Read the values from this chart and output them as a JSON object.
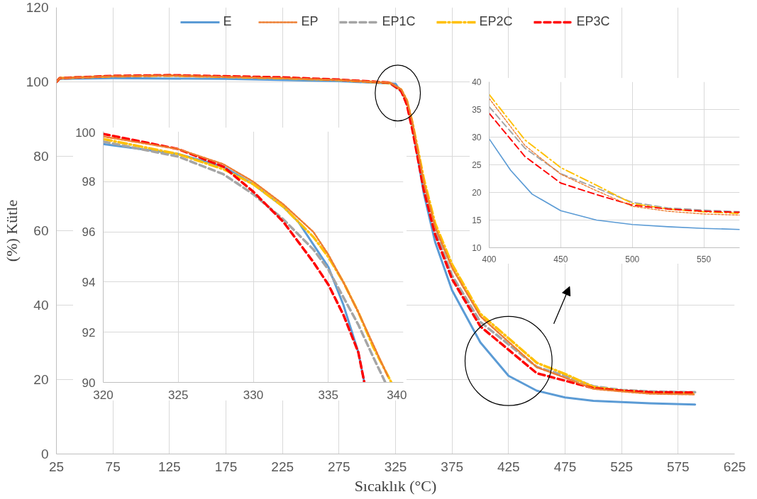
{
  "chart_data": [
    {
      "type": "line",
      "xlabel": "Sıcaklık (°C)",
      "ylabel": "(%) Kütle",
      "xlim": [
        25,
        625
      ],
      "ylim": [
        0,
        120
      ],
      "xticks": [
        25,
        75,
        125,
        175,
        225,
        275,
        325,
        375,
        425,
        475,
        525,
        575,
        625
      ],
      "yticks": [
        0,
        20,
        40,
        60,
        80,
        100,
        120
      ],
      "grid": true,
      "legend": "top",
      "series": [
        {
          "name": "E",
          "color": "#5b9bd5",
          "line_style": "solid",
          "x": [
            25,
            28,
            75,
            175,
            275,
            325,
            335,
            340,
            350,
            360,
            375,
            400,
            425,
            450,
            475,
            500,
            550,
            590
          ],
          "values": [
            100,
            100.8,
            101,
            100.8,
            100.2,
            99.5,
            95,
            88,
            70,
            57,
            44,
            30,
            21,
            17,
            15.2,
            14.3,
            13.6,
            13.3
          ]
        },
        {
          "name": "EP",
          "color": "#ed7d31",
          "line_style": "dotted",
          "x": [
            25,
            28,
            75,
            125,
            225,
            275,
            320,
            330,
            335,
            340,
            350,
            360,
            375,
            400,
            450,
            475,
            500,
            525,
            550,
            590
          ],
          "values": [
            100,
            101,
            101.5,
            101.7,
            101,
            100.5,
            99.8,
            98,
            95.1,
            89,
            73,
            61,
            50,
            37,
            23.3,
            20.5,
            17.5,
            16.8,
            16.2,
            16
          ]
        },
        {
          "name": "EP1C",
          "color": "#a5a5a5",
          "line_style": "dashed",
          "x": [
            25,
            28,
            75,
            125,
            225,
            275,
            320,
            330,
            335,
            340,
            350,
            360,
            375,
            400,
            450,
            475,
            500,
            525,
            550,
            590
          ],
          "values": [
            100,
            101,
            101.5,
            101.7,
            101,
            100.5,
            99.6,
            97.5,
            94.5,
            88,
            72,
            60,
            48,
            35.5,
            23.4,
            21,
            18.2,
            17.2,
            16.8,
            16.6
          ]
        },
        {
          "name": "EP2C",
          "color": "#ffc000",
          "line_style": "dashdot",
          "x": [
            25,
            28,
            75,
            125,
            225,
            275,
            320,
            330,
            335,
            340,
            350,
            360,
            375,
            400,
            450,
            475,
            500,
            525,
            550,
            590
          ],
          "values": [
            100,
            101,
            101.5,
            101.7,
            101,
            100.5,
            99.7,
            97.9,
            95,
            89,
            74,
            62,
            51,
            37.7,
            24.5,
            21.5,
            18,
            17,
            16.5,
            16.2
          ]
        },
        {
          "name": "EP3C",
          "color": "#ff0000",
          "line_style": "dashed",
          "x": [
            25,
            28,
            75,
            125,
            225,
            275,
            320,
            330,
            335,
            340,
            350,
            360,
            375,
            400,
            450,
            475,
            500,
            525,
            550,
            590
          ],
          "values": [
            100,
            101,
            101.6,
            101.8,
            101.2,
            100.6,
            99.8,
            97.6,
            93.9,
            87,
            71,
            59,
            47,
            34.3,
            21.7,
            19.7,
            17.7,
            17,
            16.6,
            16.5
          ]
        }
      ]
    },
    {
      "type": "line",
      "xlim": [
        320,
        340
      ],
      "ylim": [
        90,
        100
      ],
      "xticks": [
        320,
        325,
        330,
        335,
        340
      ],
      "yticks": [
        90,
        92,
        94,
        96,
        98,
        100
      ],
      "grid": true,
      "series": [
        {
          "color": "#5b9bd5",
          "line_style": "solid",
          "x": [
            320,
            325,
            328,
            330,
            332,
            333,
            334,
            335,
            336,
            337,
            337.4
          ],
          "values": [
            99.5,
            99.1,
            98.6,
            97.9,
            97,
            96.4,
            95.5,
            94.6,
            93.1,
            91.2,
            90
          ]
        },
        {
          "color": "#ed7d31",
          "line_style": "dotted",
          "x": [
            320,
            325,
            328,
            330,
            332,
            334,
            335,
            336,
            337,
            338,
            339
          ],
          "values": [
            99.8,
            99.3,
            98.7,
            98,
            97.1,
            96,
            95.1,
            94,
            92.8,
            91.5,
            90.2
          ]
        },
        {
          "color": "#a5a5a5",
          "line_style": "dashed",
          "x": [
            320,
            325,
            328,
            330,
            332,
            334,
            335,
            336,
            337,
            338,
            338.8
          ],
          "values": [
            99.6,
            99,
            98.3,
            97.5,
            96.5,
            95.3,
            94.5,
            93.4,
            92.3,
            91,
            90
          ]
        },
        {
          "color": "#ffc000",
          "line_style": "dashdot",
          "x": [
            320,
            325,
            328,
            330,
            332,
            334,
            335,
            336,
            337,
            338,
            339.2
          ],
          "values": [
            99.7,
            99.1,
            98.5,
            97.9,
            97,
            95.8,
            95,
            94,
            92.8,
            91.4,
            90
          ]
        },
        {
          "color": "#ff0000",
          "line_style": "dashed",
          "x": [
            320,
            325,
            328,
            330,
            332,
            334,
            335,
            336,
            337,
            337.4
          ],
          "values": [
            99.9,
            99.3,
            98.6,
            97.6,
            96.4,
            94.8,
            93.9,
            92.7,
            91.2,
            90
          ]
        }
      ]
    },
    {
      "type": "line",
      "xlim": [
        400,
        575
      ],
      "ylim": [
        10,
        40
      ],
      "xticks": [
        400,
        450,
        500,
        550
      ],
      "yticks": [
        10,
        15,
        20,
        25,
        30,
        35,
        40
      ],
      "grid": true,
      "series": [
        {
          "color": "#5b9bd5",
          "line_style": "solid",
          "x": [
            400,
            415,
            430,
            450,
            475,
            500,
            525,
            550,
            575
          ],
          "values": [
            29.7,
            24,
            19.7,
            16.7,
            15,
            14.2,
            13.8,
            13.5,
            13.3
          ]
        },
        {
          "color": "#ed7d31",
          "line_style": "dotted",
          "x": [
            400,
            425,
            450,
            475,
            500,
            525,
            550,
            575
          ],
          "values": [
            37,
            28.5,
            23.3,
            20.3,
            17.5,
            16.6,
            16.1,
            15.9
          ]
        },
        {
          "color": "#a5a5a5",
          "line_style": "dashed",
          "x": [
            400,
            425,
            450,
            475,
            500,
            525,
            550,
            575
          ],
          "values": [
            35.5,
            28,
            23.4,
            20.8,
            18.2,
            17.2,
            16.8,
            16.5
          ]
        },
        {
          "color": "#ffc000",
          "line_style": "dashdot",
          "x": [
            400,
            425,
            450,
            475,
            500,
            525,
            550,
            575
          ],
          "values": [
            37.7,
            29.5,
            24.5,
            21.3,
            18,
            17,
            16.5,
            16.2
          ]
        },
        {
          "color": "#ff0000",
          "line_style": "dashed",
          "x": [
            400,
            425,
            450,
            475,
            500,
            525,
            550,
            575
          ],
          "values": [
            34.3,
            26.5,
            21.7,
            19.6,
            17.7,
            17,
            16.6,
            16.4
          ]
        }
      ]
    }
  ]
}
